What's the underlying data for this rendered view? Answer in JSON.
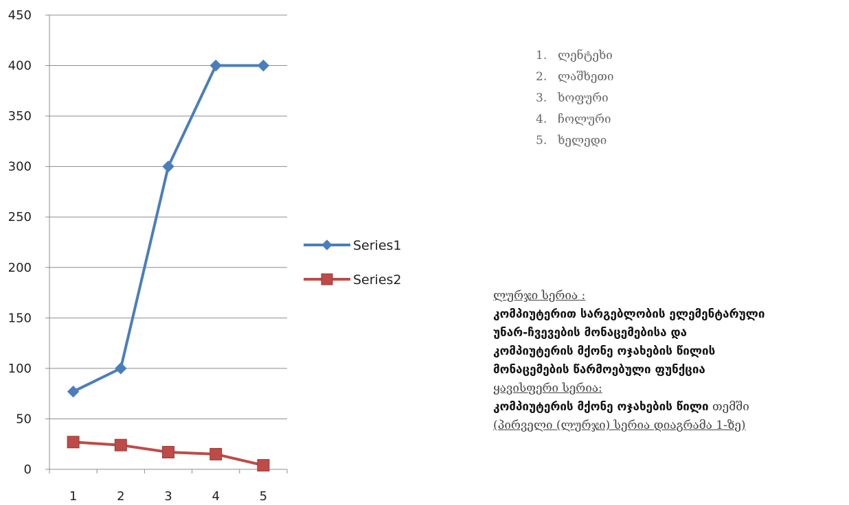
{
  "chart_data": {
    "type": "line",
    "categories": [
      "1",
      "2",
      "3",
      "4",
      "5"
    ],
    "series": [
      {
        "name": "Series1",
        "values": [
          77,
          100,
          300,
          400,
          400
        ],
        "color": "#4a7ebb",
        "marker": "diamond"
      },
      {
        "name": "Series2",
        "values": [
          27,
          24,
          17,
          15,
          4
        ],
        "color": "#be4b48",
        "marker": "square"
      }
    ],
    "yticks": [
      "0",
      "50",
      "100",
      "150",
      "200",
      "250",
      "300",
      "350",
      "400",
      "450"
    ],
    "ylim": [
      0,
      450
    ],
    "grid": true,
    "legend_position": "right"
  },
  "regions": [
    {
      "num": "1.",
      "name": "ლენტეხი"
    },
    {
      "num": "2.",
      "name": "ლაშხეთი"
    },
    {
      "num": "3.",
      "name": "ხოფური"
    },
    {
      "num": "4.",
      "name": "ჩოლური"
    },
    {
      "num": "5.",
      "name": "ხელედი"
    }
  ],
  "notes": {
    "blue_label": "ლურჯი სერია :",
    "blue_desc_1": "კომპიუტერით სარგებლობის ელემენტარული",
    "blue_desc_2": "უნარ-ჩვევების მონაცემებისა და",
    "blue_desc_3": "კომპიუტერის მქონე ოჯახების წილის",
    "blue_desc_4": "მონაცემების წარმოებული ფუნქცია",
    "red_label": "ყავისფერი სერია:",
    "red_desc_bold": "კომპიუტერის მქონე ოჯახების წილი",
    "red_desc_regular": " თემში",
    "red_ref": " (პირველი (ლურჯი) სერია  დიაგრამა 1-ზე)"
  }
}
